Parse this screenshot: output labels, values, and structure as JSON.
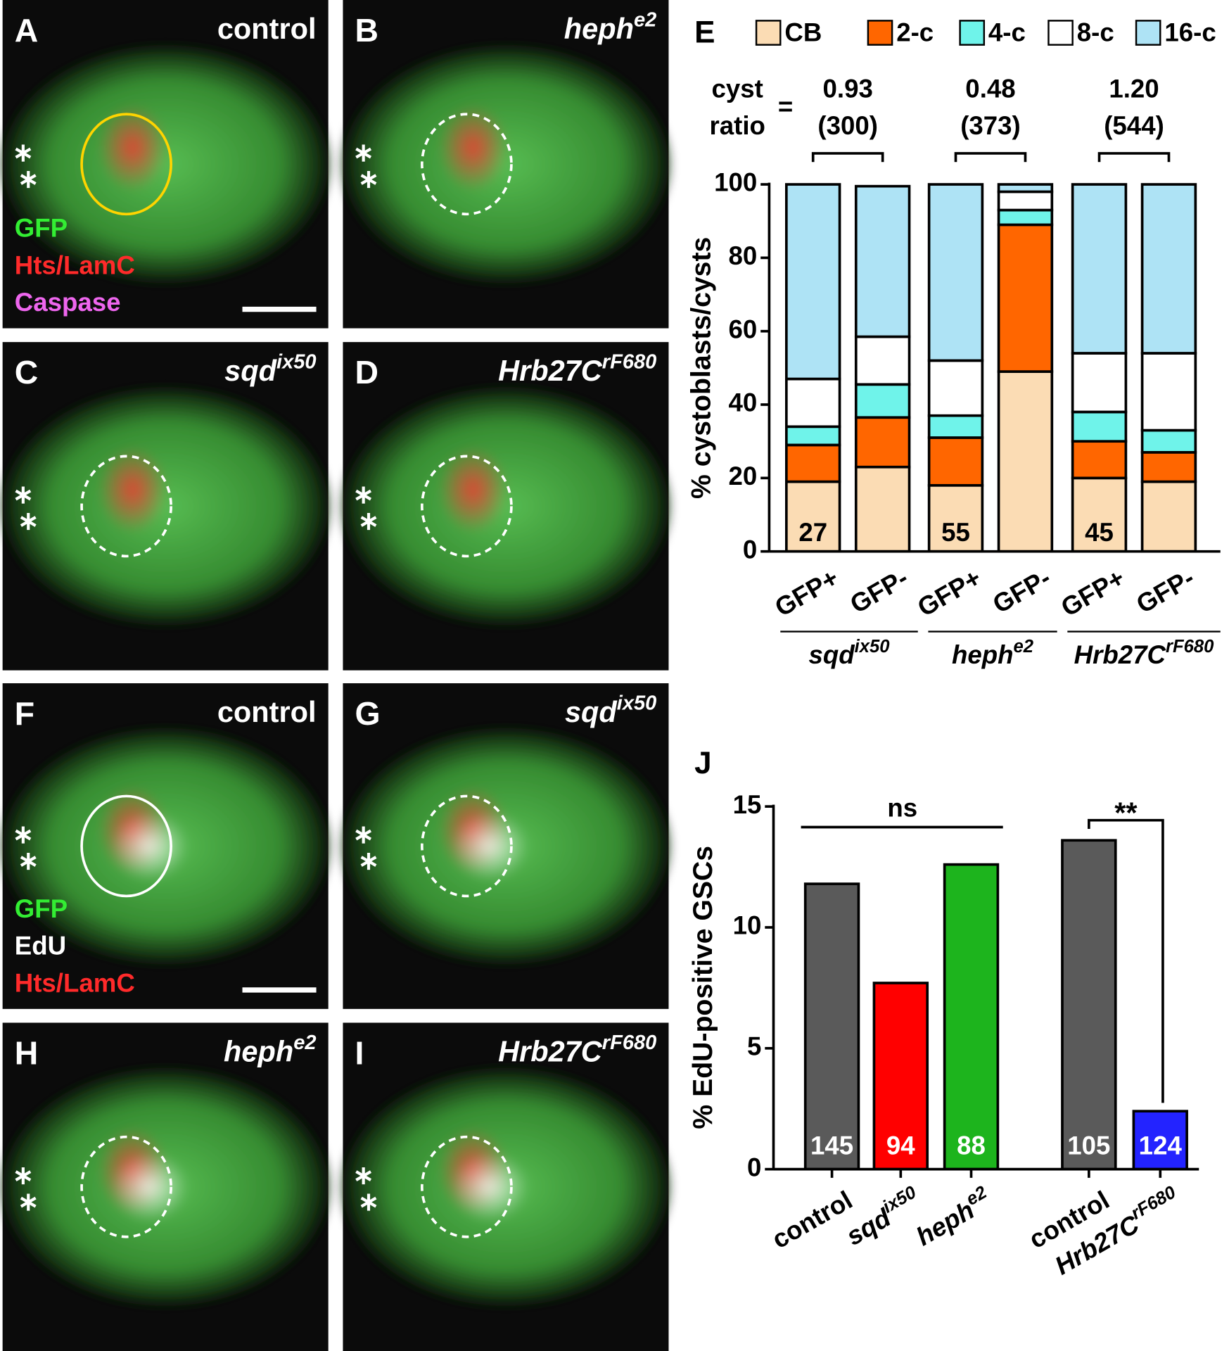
{
  "panels": [
    {
      "label": "A",
      "genotype": {
        "base": "control"
      },
      "channels": [
        {
          "text": "GFP",
          "color": "#33ee33"
        },
        {
          "text": "Hts/LamC",
          "color": "#ff2a2a"
        },
        {
          "text": "Caspase",
          "color": "#ee66ee"
        }
      ]
    },
    {
      "label": "B",
      "genotype": {
        "base": "heph",
        "sup": "e2"
      }
    },
    {
      "label": "C",
      "genotype": {
        "base": "sqd",
        "sup": "ix50"
      }
    },
    {
      "label": "D",
      "genotype": {
        "base": "Hrb27C",
        "sup": "rF680"
      }
    },
    {
      "label": "F",
      "genotype": {
        "base": "control"
      },
      "channels": [
        {
          "text": "GFP",
          "color": "#33ee33"
        },
        {
          "text": "EdU",
          "color": "#ffffff"
        },
        {
          "text": "Hts/LamC",
          "color": "#ff2a2a"
        }
      ]
    },
    {
      "label": "G",
      "genotype": {
        "base": "sqd",
        "sup": "ix50"
      }
    },
    {
      "label": "H",
      "genotype": {
        "base": "heph",
        "sup": "e2"
      }
    },
    {
      "label": "I",
      "genotype": {
        "base": "Hrb27C",
        "sup": "rF680"
      }
    }
  ],
  "chart_data": [
    {
      "type": "stacked_bar",
      "panel_label": "E",
      "ylabel": "% cystoblasts/cysts",
      "categories": [
        "GFP+",
        "GFP-",
        "GFP+",
        "GFP-",
        "GFP+",
        "GFP-"
      ],
      "series": [
        {
          "name": "CB",
          "color": "#fbdcb4",
          "values": [
            19,
            23,
            18,
            49,
            20,
            19
          ]
        },
        {
          "name": "2-c",
          "color": "#ff6600",
          "values": [
            10,
            13.5,
            13,
            40,
            10,
            8
          ]
        },
        {
          "name": "4-c",
          "color": "#6ff3ea",
          "values": [
            5,
            9,
            6,
            4,
            8,
            6
          ]
        },
        {
          "name": "8-c",
          "color": "#ffffff",
          "values": [
            13,
            13,
            15,
            5,
            16,
            21
          ]
        },
        {
          "name": "16-c",
          "color": "#aee3f5",
          "values": [
            53,
            41,
            48,
            2,
            46,
            46
          ]
        }
      ],
      "ylim": [
        0,
        100
      ],
      "yticks": [
        0,
        20,
        40,
        60,
        80,
        100
      ],
      "bar_counts": [
        27,
        55,
        45
      ],
      "ratio_label": [
        "cyst",
        "ratio"
      ],
      "ratio_equals": "=",
      "groups": [
        {
          "name": {
            "base": "sqd",
            "sup": "ix50"
          },
          "ratio": "0.93",
          "n": "(300)"
        },
        {
          "name": {
            "base": "heph",
            "sup": "e2"
          },
          "ratio": "0.48",
          "n": "(373)"
        },
        {
          "name": {
            "base": "Hrb27C",
            "sup": "rF680"
          },
          "ratio": "1.20",
          "n": "(544)"
        }
      ]
    },
    {
      "type": "bar",
      "panel_label": "J",
      "ylabel": "% EdU-positive GSCs",
      "categories": [
        {
          "base": "control"
        },
        {
          "base": "sqd",
          "sup": "ix50"
        },
        {
          "base": "heph",
          "sup": "e2"
        },
        {
          "base": "control"
        },
        {
          "base": "Hrb27C",
          "sup": "rF680"
        }
      ],
      "values": [
        11.8,
        7.7,
        12.6,
        13.6,
        2.4
      ],
      "colors": [
        "#5a5a5a",
        "#ff0000",
        "#1db41d",
        "#5a5a5a",
        "#2323ff"
      ],
      "counts": [
        145,
        94,
        88,
        105,
        124
      ],
      "ylim": [
        0,
        15
      ],
      "yticks": [
        0,
        5,
        10,
        15
      ],
      "significance": [
        {
          "label": "ns"
        },
        {
          "label": "**"
        }
      ]
    }
  ]
}
